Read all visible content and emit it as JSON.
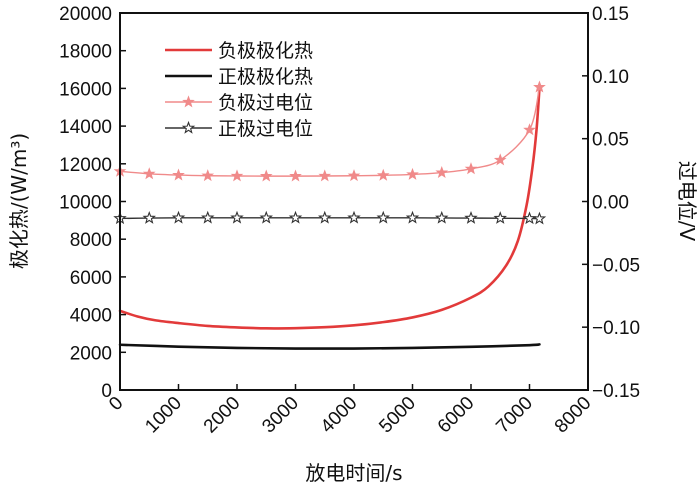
{
  "chart_data": {
    "type": "line",
    "title": "",
    "xlabel": "放电时间/s",
    "ylabel_left": "极化热/(W/m³)",
    "ylabel_right": "过电位/V",
    "xlim": [
      0,
      8000
    ],
    "ylim_left": [
      0,
      20000
    ],
    "ylim_right": [
      -0.15,
      0.15
    ],
    "x_ticks": [
      "0",
      "1000",
      "2000",
      "3000",
      "4000",
      "5000",
      "6000",
      "7000",
      "8000"
    ],
    "y_left_ticks": [
      "0",
      "2000",
      "4000",
      "6000",
      "8000",
      "10000",
      "12000",
      "14000",
      "16000",
      "18000",
      "20000"
    ],
    "y_right_ticks": [
      "−0.15",
      "−0.10",
      "−0.05",
      "0.00",
      "0.05",
      "0.10",
      "0.15"
    ],
    "legend_position": "top-left",
    "series": [
      {
        "name": "负极极化热",
        "axis": "left",
        "color": "#e23a3a",
        "marker": "none",
        "x": [
          0,
          300,
          600,
          1000,
          1500,
          2000,
          2500,
          3000,
          3500,
          4000,
          4500,
          5000,
          5500,
          6000,
          6300,
          6600,
          6800,
          6950,
          7050,
          7120,
          7170
        ],
        "y": [
          4200,
          3900,
          3700,
          3550,
          3400,
          3320,
          3270,
          3280,
          3330,
          3430,
          3600,
          3850,
          4250,
          4900,
          5500,
          6600,
          7900,
          9800,
          11800,
          13800,
          16000
        ]
      },
      {
        "name": "正极极化热",
        "axis": "left",
        "color": "#111111",
        "marker": "none",
        "x": [
          0,
          1000,
          2000,
          3000,
          4000,
          5000,
          6000,
          7000,
          7170
        ],
        "y": [
          2400,
          2300,
          2230,
          2200,
          2200,
          2230,
          2290,
          2380,
          2420
        ]
      },
      {
        "name": "负极过电位",
        "axis": "right",
        "color": "#f08a8a",
        "marker": "star",
        "x": [
          0,
          500,
          1000,
          1500,
          2000,
          2500,
          3000,
          3500,
          4000,
          4500,
          5000,
          5500,
          6000,
          6500,
          7000,
          7170
        ],
        "y": [
          0.024,
          0.022,
          0.021,
          0.0205,
          0.0203,
          0.0202,
          0.0202,
          0.0203,
          0.0205,
          0.0208,
          0.0215,
          0.023,
          0.026,
          0.033,
          0.057,
          0.091
        ]
      },
      {
        "name": "正极过电位",
        "axis": "right",
        "color": "#333333",
        "marker": "hollow-star",
        "x": [
          0,
          500,
          1000,
          1500,
          2000,
          2500,
          3000,
          3500,
          4000,
          4500,
          5000,
          5500,
          6000,
          6500,
          7000,
          7170
        ],
        "y": [
          -0.0135,
          -0.0132,
          -0.013,
          -0.013,
          -0.013,
          -0.013,
          -0.013,
          -0.013,
          -0.013,
          -0.013,
          -0.013,
          -0.0131,
          -0.0132,
          -0.0133,
          -0.0135,
          -0.0137
        ]
      }
    ]
  }
}
